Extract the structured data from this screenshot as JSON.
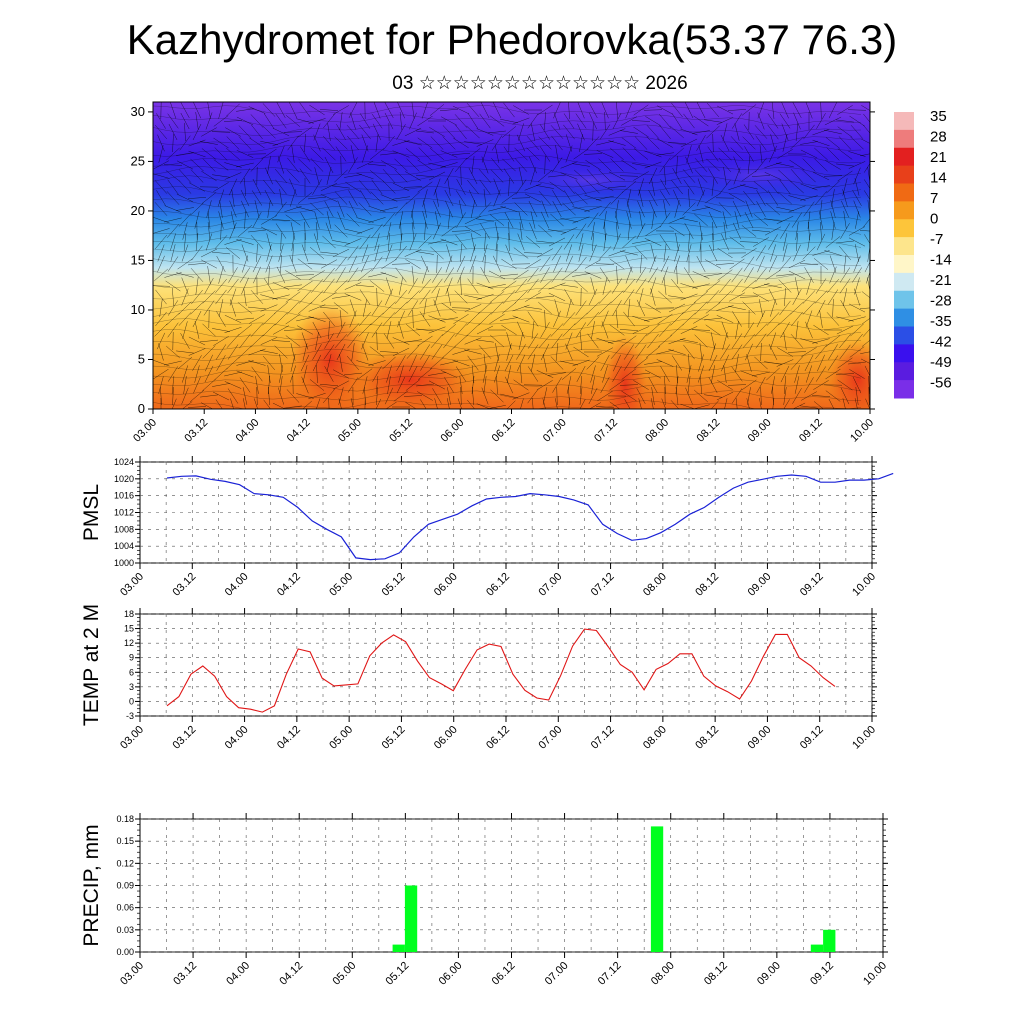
{
  "title": "Kazhydromet for Phedorovka(53.37 76.3)",
  "subtitle": "03 ☆☆☆☆☆☆☆☆☆☆☆☆☆ 2026",
  "time_ticks": [
    "03.00",
    "03.12",
    "04.00",
    "04.12",
    "05.00",
    "05.12",
    "06.00",
    "06.12",
    "07.00",
    "07.12",
    "08.00",
    "08.12",
    "09.00",
    "09.12",
    "10.00"
  ],
  "chart_data": [
    {
      "type": "heatmap",
      "title": "Kazhydromet for Phedorovka(53.37 76.3)",
      "subtitle": "03 ☆☆☆☆☆☆☆☆☆☆☆☆☆ 2026",
      "xlabel": "",
      "ylabel": "",
      "ylim": [
        0,
        31
      ],
      "y_ticks": [
        0,
        5,
        10,
        15,
        20,
        25,
        30
      ],
      "colorbar_labels": [
        "35",
        "28",
        "21",
        "14",
        "7",
        "0",
        "-7",
        "-14",
        "-21",
        "-28",
        "-35",
        "-42",
        "-49",
        "-56"
      ],
      "colorbar_colors": [
        "#f5b9b9",
        "#ee7c7c",
        "#e32020",
        "#e8401a",
        "#f06a14",
        "#f69a1c",
        "#fdc53a",
        "#fde58c",
        "#fff6c8",
        "#cfe9f2",
        "#6fc4ea",
        "#2f8fe4",
        "#2b4fe6",
        "#3a10ee",
        "#5a1ce0",
        "#7a2ee8"
      ]
    },
    {
      "type": "line",
      "ylabel": "PMSL",
      "ylim": [
        1000,
        1024
      ],
      "y_ticks": [
        "1000",
        "1004",
        "1008",
        "1012",
        "1016",
        "1020",
        "1024"
      ],
      "color": "#1a22d6",
      "values": [
        1020.2,
        1020.6,
        1020.7,
        1019.9,
        1019.4,
        1018.6,
        1016.5,
        1016.2,
        1015.6,
        1013.2,
        1010.0,
        1008.0,
        1006.2,
        1001.2,
        1000.8,
        1001.0,
        1002.4,
        1006.2,
        1009.2,
        1010.4,
        1011.6,
        1013.6,
        1015.2,
        1015.6,
        1015.8,
        1016.5,
        1016.2,
        1015.8,
        1015.0,
        1013.8,
        1009.2,
        1007.0,
        1005.4,
        1005.8,
        1007.2,
        1009.2,
        1011.6,
        1013.2,
        1015.6,
        1017.8,
        1019.2,
        1019.9,
        1020.6,
        1020.9,
        1020.6,
        1019.2,
        1019.2,
        1019.7,
        1019.7,
        1020.0,
        1021.3
      ]
    },
    {
      "type": "line",
      "ylabel": "TEMP at 2 M",
      "ylim": [
        -3,
        18
      ],
      "y_ticks": [
        "-3",
        "0",
        "3",
        "6",
        "9",
        "12",
        "15",
        "18"
      ],
      "color": "#e01616",
      "values": [
        -0.9,
        1.0,
        5.6,
        7.3,
        5.2,
        1.0,
        -1.3,
        -1.6,
        -2.2,
        -0.9,
        5.6,
        10.8,
        10.2,
        4.8,
        3.2,
        3.4,
        3.6,
        9.4,
        12.0,
        13.7,
        12.3,
        8.3,
        4.9,
        3.6,
        2.2,
        6.6,
        10.6,
        11.8,
        11.3,
        5.6,
        2.3,
        0.7,
        0.3,
        5.3,
        11.4,
        14.9,
        14.6,
        11.2,
        7.6,
        6.0,
        2.4,
        6.6,
        7.8,
        9.8,
        9.8,
        5.2,
        3.2,
        2.0,
        0.5,
        4.2,
        9.3,
        13.8,
        13.8,
        9.0,
        7.3,
        4.9,
        3.1
      ]
    },
    {
      "type": "bar",
      "ylabel": "PRECIP, mm",
      "ylim": [
        0,
        0.18
      ],
      "y_ticks": [
        "0.00",
        "0.03",
        "0.06",
        "0.09",
        "0.12",
        "0.15",
        "0.18"
      ],
      "color": "#00ff1e",
      "bars": [
        {
          "x": 19,
          "value": 0.01
        },
        {
          "x": 20,
          "value": 0.09
        },
        {
          "x": 40,
          "value": 0.17
        },
        {
          "x": 53,
          "value": 0.01
        },
        {
          "x": 54,
          "value": 0.03
        }
      ]
    }
  ]
}
